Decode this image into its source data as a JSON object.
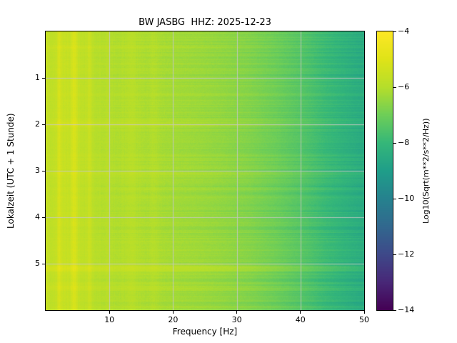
{
  "figure": {
    "background": "#ffffff",
    "grid_color": "#c8c8c8",
    "spine_color": "#000000"
  },
  "chart_data": {
    "type": "heatmap",
    "title": "BW JASBG  HHZ: 2025-12-23",
    "xlabel": "Frequency [Hz]",
    "ylabel": "Lokalzeit (UTC + 1 Stunde)",
    "colorbar_label": "Log10(Sqrt(m**2/s**2/Hz))",
    "colormap": "viridis",
    "colormap_stops": [
      "#440154",
      "#482878",
      "#3e4989",
      "#31688e",
      "#26828e",
      "#1f9e89",
      "#35b779",
      "#6ece58",
      "#b5de2b",
      "#dfe318",
      "#fde725"
    ],
    "x_range": [
      0,
      50
    ],
    "y_range": [
      0,
      6
    ],
    "x_ticks": [
      10,
      20,
      30,
      40,
      50
    ],
    "x_tick_labels": [
      "10",
      "20",
      "30",
      "40",
      "50"
    ],
    "y_ticks": [
      1,
      2,
      3,
      4,
      5
    ],
    "y_tick_labels": [
      "1",
      "2",
      "3",
      "4",
      "5"
    ],
    "color_range": [
      -14,
      -4
    ],
    "colorbar_ticks": [
      -4,
      -6,
      -8,
      -10,
      -12,
      -14
    ],
    "colorbar_tick_labels": [
      "−4",
      "−6",
      "−8",
      "−10",
      "−12",
      "−14"
    ],
    "grid": true,
    "freq_profile": {
      "freqs": [
        0.5,
        1.5,
        2.5,
        4.0,
        6.0,
        8.0,
        10,
        13,
        16,
        20,
        24,
        28,
        32,
        36,
        40,
        44,
        47,
        50
      ],
      "values": [
        -5.9,
        -5.75,
        -5.6,
        -5.65,
        -5.8,
        -5.95,
        -6.05,
        -6.1,
        -6.15,
        -6.25,
        -6.35,
        -6.5,
        -6.7,
        -7.0,
        -7.4,
        -7.9,
        -8.2,
        -8.5
      ]
    },
    "stripes": [
      {
        "f": 0.3,
        "width": 0.5,
        "boost": 0.3
      },
      {
        "f": 2.1,
        "width": 0.35,
        "boost": 0.45
      },
      {
        "f": 4.5,
        "width": 0.5,
        "boost": 0.55
      },
      {
        "f": 6.9,
        "width": 0.4,
        "boost": 0.35
      },
      {
        "f": 9.8,
        "width": 0.35,
        "boost": 0.2
      },
      {
        "f": 13.5,
        "width": 1.2,
        "boost": 0.15
      },
      {
        "f": 17.0,
        "width": 0.8,
        "boost": 0.15
      }
    ],
    "row_bands": [
      {
        "t": 0.35,
        "width": 0.05,
        "boost": 0.2
      },
      {
        "t": 2.0,
        "width": 0.07,
        "boost": 0.3
      },
      {
        "t": 3.05,
        "width": 0.04,
        "boost": 0.15
      },
      {
        "t": 5.1,
        "width": 0.08,
        "boost": 0.4
      },
      {
        "t": 5.5,
        "width": 0.06,
        "boost": 0.2
      }
    ],
    "pixel_noise": 0.18,
    "row_noise": 0.35,
    "col_noise": 0.22
  }
}
